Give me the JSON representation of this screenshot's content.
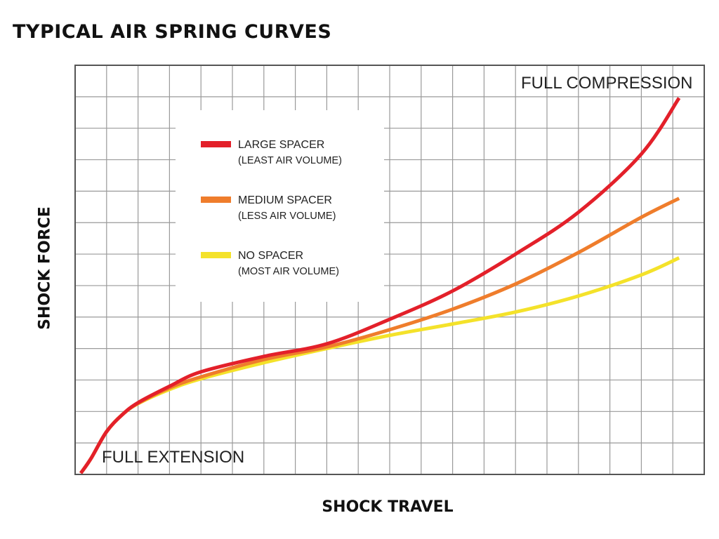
{
  "chart_data": {
    "type": "line",
    "title": "TYPICAL AIR SPRING CURVES",
    "xlabel": "SHOCK TRAVEL",
    "ylabel": "SHOCK FORCE",
    "xlim": [
      0,
      20
    ],
    "ylim": [
      0,
      13
    ],
    "grid": true,
    "legend_position": "top-left",
    "annotations": [
      "FULL COMPRESSION",
      "FULL EXTENSION"
    ],
    "series": [
      {
        "name": "LARGE SPACER",
        "sublabel": "(LEAST AIR VOLUME)",
        "color": "#e3202a",
        "x": [
          0.18,
          0.5,
          1,
          1.5,
          2,
          3,
          4,
          6,
          8,
          10,
          12,
          14,
          16,
          18,
          19.2
        ],
        "y": [
          0.04,
          0.5,
          1.36,
          1.9,
          2.28,
          2.8,
          3.26,
          3.75,
          4.15,
          4.93,
          5.83,
          7.0,
          8.33,
          10.18,
          11.96
        ]
      },
      {
        "name": "MEDIUM SPACER",
        "sublabel": "(LESS AIR VOLUME)",
        "color": "#ef7d2c",
        "x": [
          0.18,
          0.5,
          1,
          1.5,
          2,
          3,
          4,
          6,
          8,
          10,
          12,
          14,
          16,
          18,
          19.2
        ],
        "y": [
          0.04,
          0.5,
          1.36,
          1.9,
          2.26,
          2.75,
          3.1,
          3.65,
          4.05,
          4.6,
          5.25,
          6.05,
          7.05,
          8.17,
          8.77
        ]
      },
      {
        "name": "NO SPACER",
        "sublabel": "(MOST AIR VOLUME)",
        "color": "#f4e22a",
        "x": [
          0.18,
          0.5,
          1,
          1.5,
          2,
          3,
          4,
          6,
          8,
          10,
          12,
          14,
          16,
          18,
          19.2
        ],
        "y": [
          0.04,
          0.5,
          1.36,
          1.9,
          2.25,
          2.7,
          3.04,
          3.55,
          4.0,
          4.42,
          4.78,
          5.16,
          5.67,
          6.34,
          6.88
        ]
      }
    ]
  }
}
